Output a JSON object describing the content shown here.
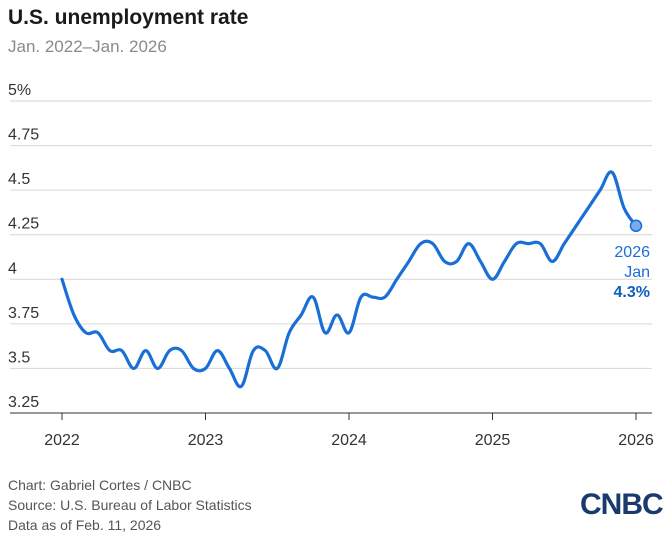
{
  "header": {
    "title": "U.S. unemployment rate",
    "subtitle": "Jan. 2022–Jan. 2026"
  },
  "chart_data": {
    "type": "line",
    "title": "U.S. unemployment rate",
    "subtitle": "Jan. 2022–Jan. 2026",
    "xlabel": "",
    "ylabel": "",
    "ylim": [
      3.25,
      5.0
    ],
    "y_ticks": [
      "3.25",
      "3.5",
      "3.75",
      "4",
      "4.25",
      "4.5",
      "4.75",
      "5%"
    ],
    "y_tick_values": [
      3.25,
      3.5,
      3.75,
      4.0,
      4.25,
      4.5,
      4.75,
      5.0
    ],
    "x_ticks": [
      "2022",
      "2023",
      "2024",
      "2025",
      "2026"
    ],
    "grid": "horizontal",
    "color": "#1a6fd6",
    "series": [
      {
        "x": [
          "2022-01",
          "2022-02",
          "2022-03",
          "2022-04",
          "2022-05",
          "2022-06",
          "2022-07",
          "2022-08",
          "2022-09",
          "2022-10",
          "2022-11",
          "2022-12",
          "2023-01",
          "2023-02",
          "2023-03",
          "2023-04",
          "2023-05",
          "2023-06",
          "2023-07",
          "2023-08",
          "2023-09",
          "2023-10",
          "2023-11",
          "2023-12",
          "2024-01",
          "2024-02",
          "2024-03",
          "2024-04",
          "2024-05",
          "2024-06",
          "2024-07",
          "2024-08",
          "2024-09",
          "2024-10",
          "2024-11",
          "2024-12",
          "2025-01",
          "2025-02",
          "2025-03",
          "2025-04",
          "2025-05",
          "2025-06",
          "2025-07",
          "2025-08",
          "2025-09",
          "2025-10",
          "2025-11",
          "2025-12",
          "2026-01"
        ],
        "values": [
          4.0,
          3.8,
          3.7,
          3.7,
          3.6,
          3.6,
          3.5,
          3.6,
          3.5,
          3.6,
          3.6,
          3.5,
          3.5,
          3.6,
          3.5,
          3.4,
          3.6,
          3.6,
          3.5,
          3.7,
          3.8,
          3.9,
          3.7,
          3.8,
          3.7,
          3.9,
          3.9,
          3.9,
          4.0,
          4.1,
          4.2,
          4.2,
          4.1,
          4.1,
          4.2,
          4.1,
          4.0,
          4.1,
          4.2,
          4.2,
          4.2,
          4.1,
          4.2,
          4.3,
          4.4,
          4.5,
          4.6,
          4.4,
          4.3
        ]
      }
    ],
    "annotation": {
      "year": "2026",
      "month": "Jan",
      "value": "4.3%"
    }
  },
  "footer": {
    "credit": "Chart: Gabriel Cortes / CNBC",
    "source": "Source: U.S. Bureau of Labor Statistics",
    "date": "Data as of Feb. 11, 2026",
    "logo": "CNBC"
  }
}
